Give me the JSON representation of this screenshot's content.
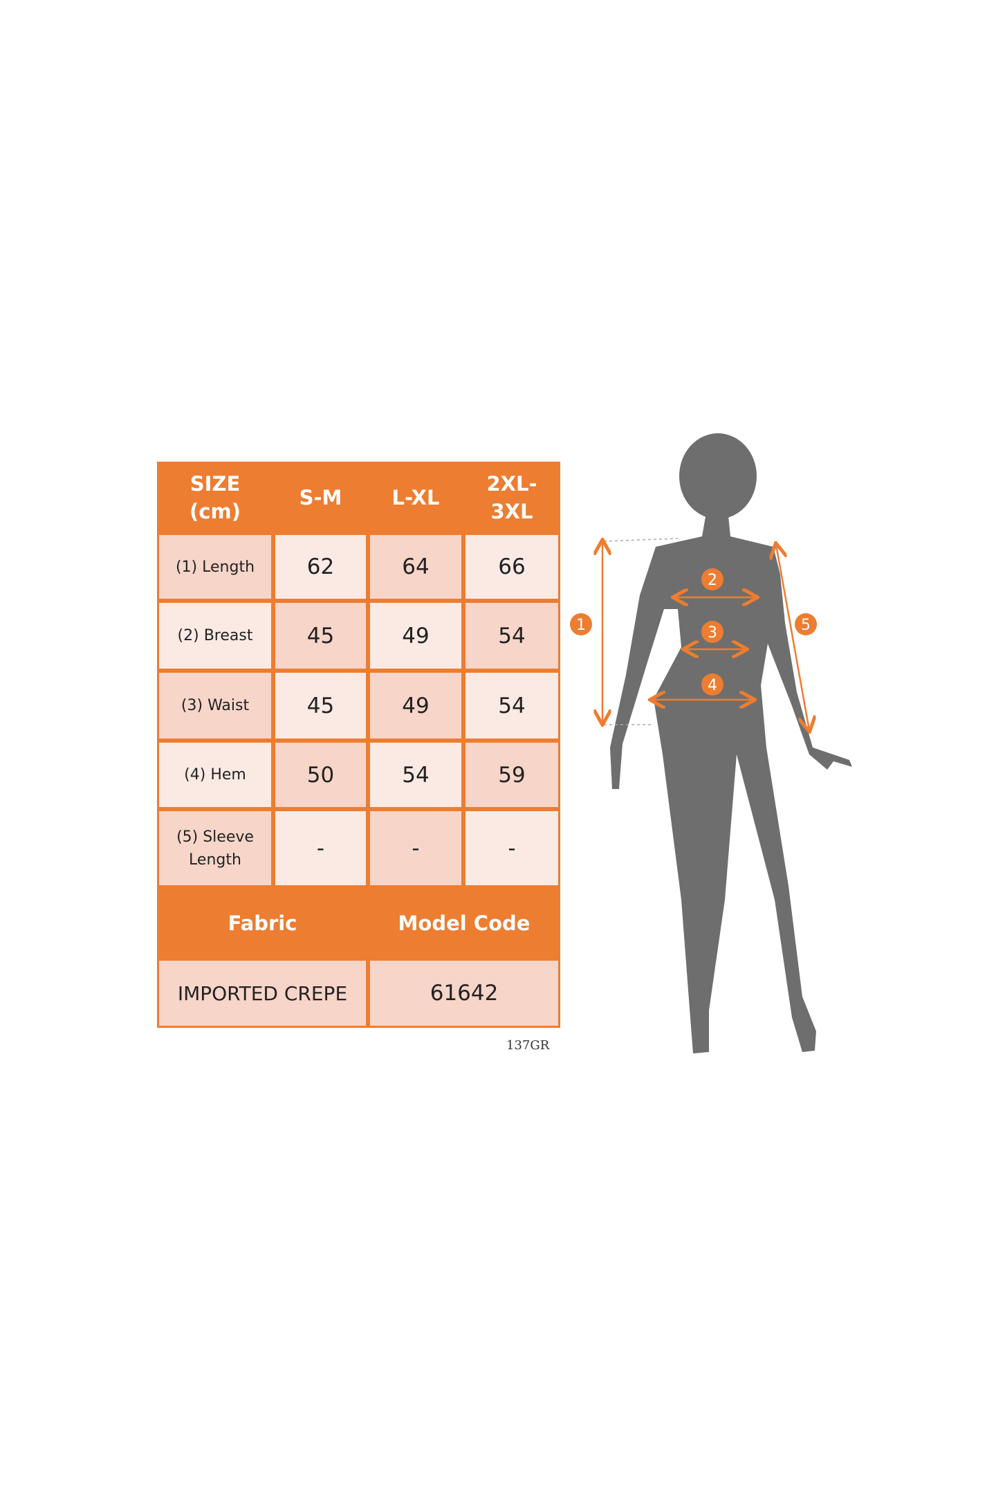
{
  "table": {
    "header": [
      "SIZE\n(cm)",
      "S-M",
      "L-XL",
      "2XL-\n3XL"
    ],
    "rows": [
      {
        "label": "(1) Length",
        "values": [
          "62",
          "64",
          "66"
        ]
      },
      {
        "label": "(2) Breast",
        "values": [
          "45",
          "49",
          "54"
        ]
      },
      {
        "label": "(3) Waist",
        "values": [
          "45",
          "49",
          "54"
        ]
      },
      {
        "label": "(4) Hem",
        "values": [
          "50",
          "54",
          "59"
        ]
      },
      {
        "label": "(5) Sleeve Length",
        "values": [
          "-",
          "-",
          "-"
        ]
      }
    ],
    "info_header": {
      "fabric": "Fabric",
      "model_code": "Model Code"
    },
    "info_values": {
      "fabric": "IMPORTED CREPE",
      "model_code": "61642"
    }
  },
  "code_label": "137GR",
  "diagram": {
    "markers": [
      "1",
      "2",
      "3",
      "4",
      "5"
    ]
  },
  "colors": {
    "accent": "#ED7D31",
    "cell_dark": "#F7D5C9",
    "cell_light": "#FBEAE4",
    "silhouette": "#6E6E6E"
  }
}
